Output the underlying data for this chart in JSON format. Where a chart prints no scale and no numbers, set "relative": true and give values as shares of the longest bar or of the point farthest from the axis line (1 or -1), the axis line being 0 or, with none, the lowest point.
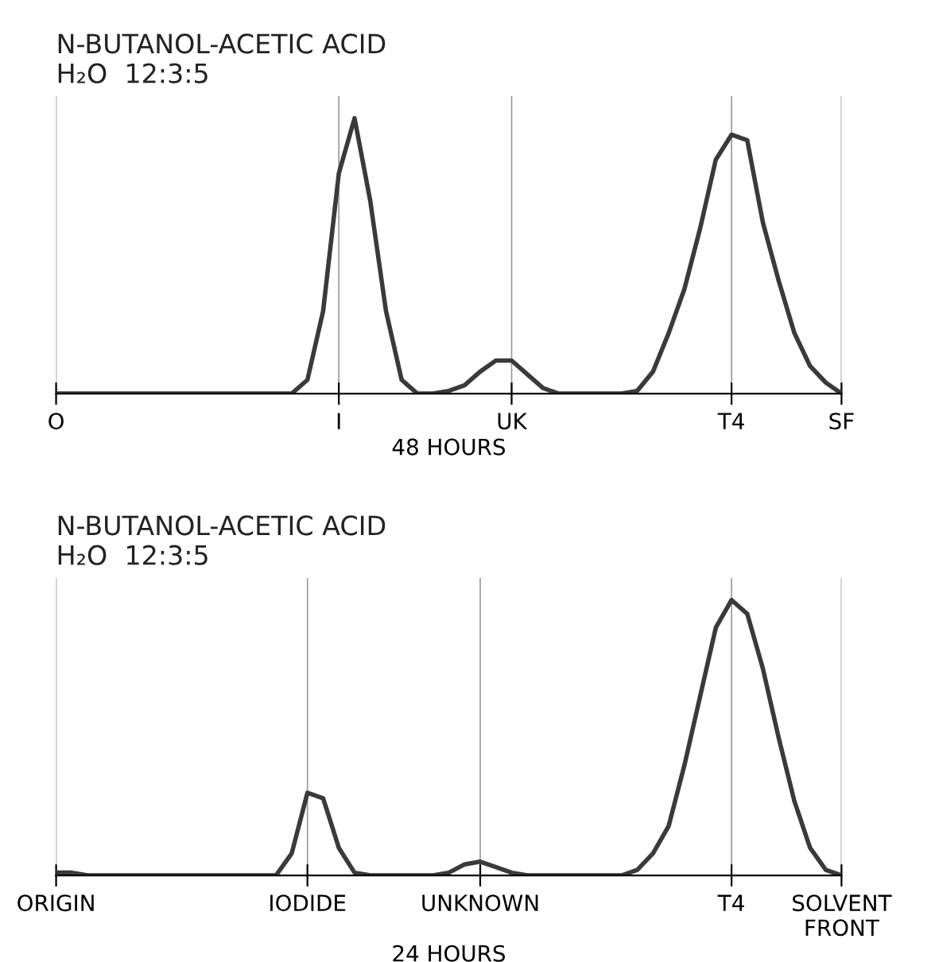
{
  "chart_data": [
    {
      "type": "line",
      "title": "N-BUTANOL-ACETIC ACID\nH₂O  12:3:5",
      "xlabel": "48 HOURS",
      "relative": true,
      "grid": "x",
      "legend": false,
      "marker": "none",
      "line_style": "solid",
      "categories": [
        "O",
        null,
        null,
        null,
        null,
        null,
        null,
        null,
        null,
        null,
        null,
        null,
        null,
        null,
        null,
        null,
        null,
        null,
        "I",
        null,
        null,
        null,
        null,
        null,
        null,
        null,
        null,
        null,
        null,
        "UK",
        null,
        null,
        null,
        null,
        null,
        null,
        null,
        null,
        null,
        null,
        null,
        null,
        null,
        "T4",
        null,
        null,
        null,
        null,
        null,
        null,
        "SF"
      ],
      "series": [
        {
          "color": "#3a3a3a",
          "values": [
            0,
            0,
            0,
            0,
            0,
            0,
            0,
            0,
            0,
            0,
            0,
            0,
            0,
            0,
            0,
            0,
            0.05,
            0.3,
            0.8,
            1,
            0.7,
            0.3,
            0.05,
            0,
            0,
            0.01,
            0.03,
            0.08,
            0.12,
            0.12,
            0.07,
            0.02,
            0,
            0,
            0,
            0,
            0,
            0.01,
            0.08,
            0.22,
            0.38,
            0.6,
            0.85,
            0.94,
            0.92,
            0.62,
            0.41,
            0.22,
            0.1,
            0.04,
            0
          ]
        }
      ]
    },
    {
      "type": "line",
      "title": "N-BUTANOL-ACETIC ACID\nH₂O  12:3:5",
      "xlabel": "24 HOURS",
      "relative": true,
      "grid": "x",
      "legend": false,
      "marker": "none",
      "line_style": "solid",
      "categories": [
        "ORIGIN",
        null,
        null,
        null,
        null,
        null,
        null,
        null,
        null,
        null,
        null,
        null,
        null,
        null,
        null,
        null,
        "IODIDE",
        null,
        null,
        null,
        null,
        null,
        null,
        null,
        null,
        null,
        null,
        "UNKNOWN",
        null,
        null,
        null,
        null,
        null,
        null,
        null,
        null,
        null,
        null,
        null,
        null,
        null,
        null,
        null,
        "T4",
        null,
        null,
        null,
        null,
        null,
        null,
        "SOLVENT\nFRONT"
      ],
      "series": [
        {
          "color": "#3a3a3a",
          "values": [
            0.01,
            0.01,
            0,
            0,
            0,
            0,
            0,
            0,
            0,
            0,
            0,
            0,
            0,
            0,
            0,
            0.08,
            0.3,
            0.28,
            0.1,
            0.01,
            0,
            0,
            0,
            0,
            0,
            0.01,
            0.04,
            0.05,
            0.03,
            0.01,
            0,
            0,
            0,
            0,
            0,
            0,
            0,
            0.02,
            0.08,
            0.18,
            0.4,
            0.65,
            0.9,
            1,
            0.95,
            0.75,
            0.5,
            0.27,
            0.1,
            0.02,
            0
          ]
        }
      ]
    }
  ]
}
